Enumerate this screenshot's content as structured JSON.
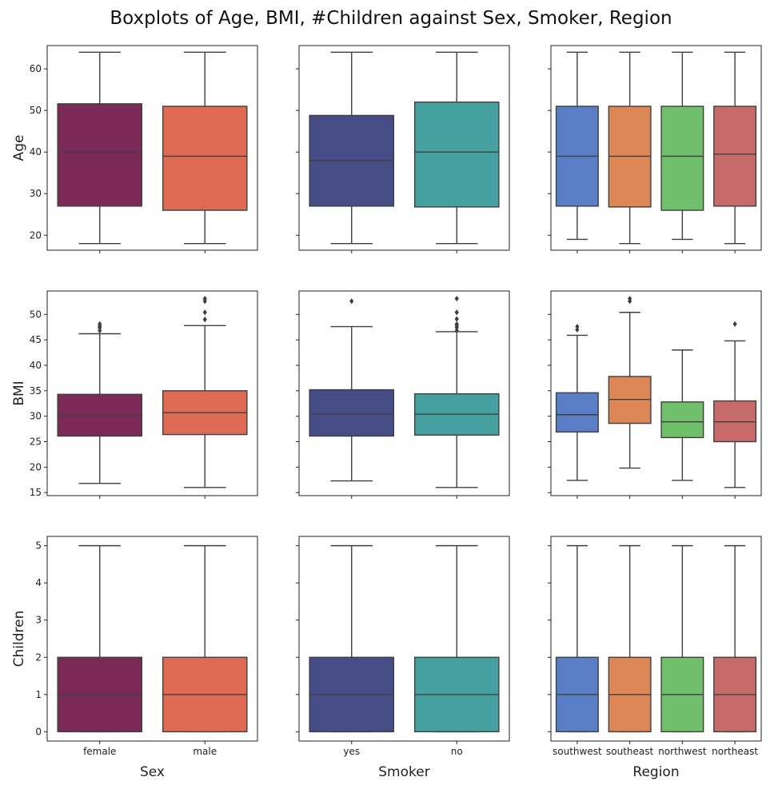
{
  "chart_data": {
    "type": "boxplot-grid",
    "title": "Boxplots of Age, BMI, #Children against Sex, Smoker, Region",
    "rows": [
      {
        "variable": "age",
        "ylabel": "Age",
        "ylim": [
          16.4,
          65.6
        ],
        "yticks": [
          20,
          30,
          40,
          50,
          60
        ],
        "ytick_labels": [
          "20",
          "30",
          "40",
          "50",
          "60"
        ]
      },
      {
        "variable": "bmi",
        "ylabel": "BMI",
        "ylim": [
          14.4,
          54.6
        ],
        "yticks": [
          15,
          20,
          25,
          30,
          35,
          40,
          45,
          50
        ],
        "ytick_labels": [
          "15",
          "20",
          "25",
          "30",
          "35",
          "40",
          "45",
          "50"
        ]
      },
      {
        "variable": "children",
        "ylabel": "Children",
        "ylim": [
          -0.25,
          5.25
        ],
        "yticks": [
          0,
          1,
          2,
          3,
          4,
          5
        ],
        "ytick_labels": [
          "0",
          "1",
          "2",
          "3",
          "4",
          "5"
        ]
      }
    ],
    "cols": [
      {
        "factor": "sex",
        "xlabel": "Sex",
        "categories": [
          "female",
          "male"
        ],
        "colors": [
          "#7b2a57",
          "#e06b55"
        ]
      },
      {
        "factor": "smoker",
        "xlabel": "Smoker",
        "categories": [
          "yes",
          "no"
        ],
        "colors": [
          "#464c85",
          "#44a1a0"
        ]
      },
      {
        "factor": "region",
        "xlabel": "Region",
        "categories": [
          "southwest",
          "southeast",
          "northwest",
          "northeast"
        ],
        "colors": [
          "#5a7ec6",
          "#dd8656",
          "#70bf6b",
          "#c76b6a"
        ]
      }
    ],
    "panels": [
      [
        [
          {
            "whislo": 18,
            "q1": 27,
            "med": 40,
            "q3": 51.6,
            "whishi": 64,
            "fliers": []
          },
          {
            "whislo": 18,
            "q1": 26,
            "med": 39,
            "q3": 51,
            "whishi": 64,
            "fliers": []
          }
        ],
        [
          {
            "whislo": 18,
            "q1": 27,
            "med": 38,
            "q3": 48.8,
            "whishi": 64,
            "fliers": []
          },
          {
            "whislo": 18,
            "q1": 26.8,
            "med": 40,
            "q3": 52,
            "whishi": 64,
            "fliers": []
          }
        ],
        [
          {
            "whislo": 19,
            "q1": 27,
            "med": 39,
            "q3": 51,
            "whishi": 64,
            "fliers": []
          },
          {
            "whislo": 18,
            "q1": 26.8,
            "med": 39,
            "q3": 51,
            "whishi": 64,
            "fliers": []
          },
          {
            "whislo": 19,
            "q1": 26,
            "med": 39,
            "q3": 51,
            "whishi": 64,
            "fliers": []
          },
          {
            "whislo": 18,
            "q1": 27,
            "med": 39.5,
            "q3": 51,
            "whishi": 64,
            "fliers": []
          }
        ]
      ],
      [
        [
          {
            "whislo": 16.8,
            "q1": 26.1,
            "med": 30.1,
            "q3": 34.3,
            "whishi": 46.2,
            "fliers": [
              46.8,
              47.4,
              47.7,
              48.1
            ]
          },
          {
            "whislo": 16,
            "q1": 26.4,
            "med": 30.7,
            "q3": 35,
            "whishi": 47.8,
            "fliers": [
              49,
              50.4,
              52.6,
              53.1
            ]
          }
        ],
        [
          {
            "whislo": 17.3,
            "q1": 26.1,
            "med": 30.4,
            "q3": 35.2,
            "whishi": 47.6,
            "fliers": [
              52.6
            ]
          },
          {
            "whislo": 16,
            "q1": 26.3,
            "med": 30.4,
            "q3": 34.4,
            "whishi": 46.6,
            "fliers": [
              46.8,
              47.4,
              47.8,
              48.1,
              49.1,
              50.4,
              53.1
            ]
          }
        ],
        [
          {
            "whislo": 17.4,
            "q1": 26.9,
            "med": 30.3,
            "q3": 34.6,
            "whishi": 45.9,
            "fliers": [
              47,
              47.6
            ]
          },
          {
            "whislo": 19.8,
            "q1": 28.6,
            "med": 33.3,
            "q3": 37.8,
            "whishi": 50.4,
            "fliers": [
              52.6,
              53.1
            ]
          },
          {
            "whislo": 17.4,
            "q1": 25.8,
            "med": 28.9,
            "q3": 32.8,
            "whishi": 43,
            "fliers": []
          },
          {
            "whislo": 16,
            "q1": 25,
            "med": 28.9,
            "q3": 33,
            "whishi": 44.8,
            "fliers": [
              48.1
            ]
          }
        ]
      ],
      [
        [
          {
            "whislo": 0,
            "q1": 0,
            "med": 1,
            "q3": 2,
            "whishi": 5,
            "fliers": []
          },
          {
            "whislo": 0,
            "q1": 0,
            "med": 1,
            "q3": 2,
            "whishi": 5,
            "fliers": []
          }
        ],
        [
          {
            "whislo": 0,
            "q1": 0,
            "med": 1,
            "q3": 2,
            "whishi": 5,
            "fliers": []
          },
          {
            "whislo": 0,
            "q1": 0,
            "med": 1,
            "q3": 2,
            "whishi": 5,
            "fliers": []
          }
        ],
        [
          {
            "whislo": 0,
            "q1": 0,
            "med": 1,
            "q3": 2,
            "whishi": 5,
            "fliers": []
          },
          {
            "whislo": 0,
            "q1": 0,
            "med": 1,
            "q3": 2,
            "whishi": 5,
            "fliers": []
          },
          {
            "whislo": 0,
            "q1": 0,
            "med": 1,
            "q3": 2,
            "whishi": 5,
            "fliers": []
          },
          {
            "whislo": 0,
            "q1": 0,
            "med": 1,
            "q3": 2,
            "whishi": 5,
            "fliers": []
          }
        ]
      ]
    ],
    "grid": false,
    "sharey": "row",
    "sharex": "col"
  }
}
